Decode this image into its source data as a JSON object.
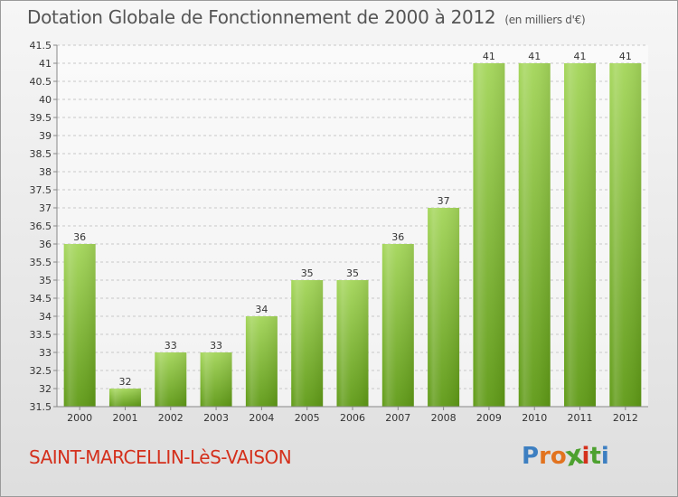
{
  "header": {
    "title": "Dotation Globale de Fonctionnement de 2000 à 2012",
    "subtitle": "(en milliers d'€)"
  },
  "footer": {
    "commune": "SAINT-MARCELLIN-LèS-VAISON",
    "logo": "Proxiti"
  },
  "colors": {
    "bar_light": "#a4d65a",
    "bar_dark": "#5f9a16",
    "commune_text": "#d4301c",
    "logo_letters": [
      "#3d7fc1",
      "#e2731f",
      "#e2731f",
      "#4da12f",
      "#d4301c",
      "#4da12f",
      "#3d7fc1"
    ]
  },
  "chart_data": {
    "type": "bar",
    "categories": [
      "2000",
      "2001",
      "2002",
      "2003",
      "2004",
      "2005",
      "2006",
      "2007",
      "2008",
      "2009",
      "2010",
      "2011",
      "2012"
    ],
    "values": [
      36,
      32,
      33,
      33,
      34,
      35,
      35,
      36,
      37,
      41,
      41,
      41,
      41
    ],
    "data_labels": [
      "36",
      "32",
      "33",
      "33",
      "34",
      "35",
      "35",
      "36",
      "37",
      "41",
      "41",
      "41",
      "41"
    ],
    "ylim": [
      31.5,
      41.5
    ],
    "yticks": [
      "31.5",
      "32",
      "32.5",
      "33",
      "33.5",
      "34",
      "34.5",
      "35",
      "35.5",
      "36",
      "36.5",
      "37",
      "37.5",
      "38",
      "38.5",
      "39",
      "39.5",
      "40",
      "40.5",
      "41",
      "41.5"
    ],
    "grid": true
  }
}
